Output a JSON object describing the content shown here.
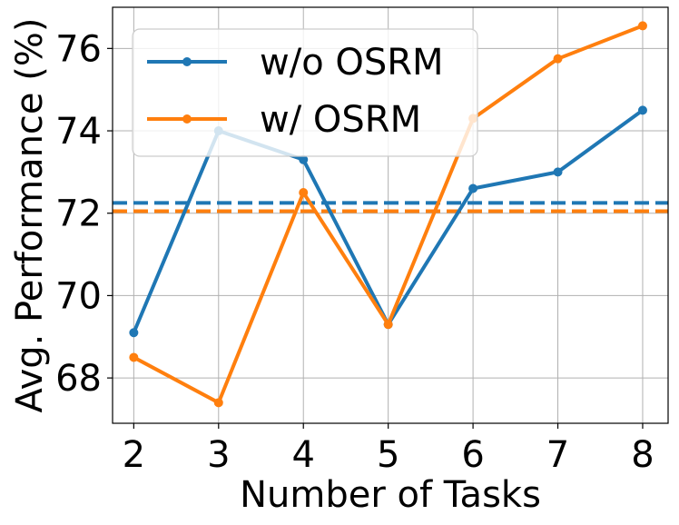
{
  "chart_data": {
    "type": "line",
    "xlabel": "Number of Tasks",
    "ylabel": "Avg. Performance (%)",
    "x": [
      2,
      3,
      4,
      5,
      6,
      7,
      8
    ],
    "xlim": [
      1.75,
      8.3
    ],
    "ylim": [
      66.9,
      77.0
    ],
    "xticks": [
      "2",
      "3",
      "4",
      "5",
      "6",
      "7",
      "8"
    ],
    "yticks": [
      "68",
      "70",
      "72",
      "74",
      "76"
    ],
    "grid": true,
    "legend_position": "top-left",
    "series": [
      {
        "name": "w/o OSRM",
        "color": "#1f77b4",
        "values": [
          69.1,
          74.0,
          73.3,
          69.3,
          72.6,
          73.0,
          74.5
        ],
        "mean_line": 72.25
      },
      {
        "name": "w/ OSRM",
        "color": "#ff7f0e",
        "values": [
          68.5,
          67.4,
          72.5,
          69.3,
          74.3,
          75.75,
          76.55
        ],
        "mean_line": 72.05
      }
    ]
  }
}
